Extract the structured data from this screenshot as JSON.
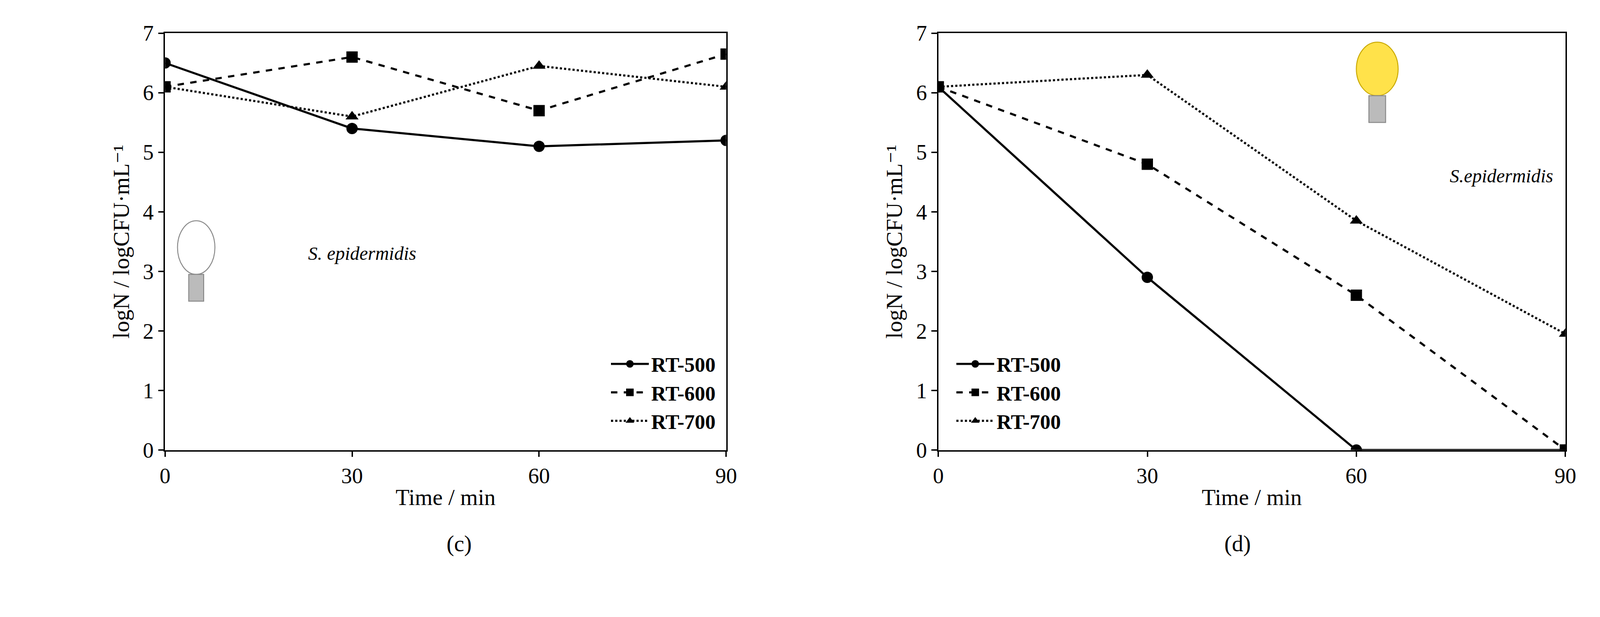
{
  "chart_data": [
    {
      "type": "line",
      "label": "(c)",
      "x": [
        0,
        30,
        60,
        90
      ],
      "x_label": "Time / min",
      "y_label": "logN / logCFU·mL⁻¹",
      "xlim": [
        0,
        90
      ],
      "xticks": [
        0,
        30,
        60,
        90
      ],
      "ylim": [
        0,
        7
      ],
      "yticks": [
        0,
        1,
        2,
        3,
        4,
        5,
        6,
        7
      ],
      "legend": "lower right",
      "annotations": [
        "S. epidermidis"
      ],
      "series": [
        {
          "name": "RT-500",
          "color": "#000000",
          "marker": "circle",
          "line_style": "solid",
          "values": [
            6.5,
            5.4,
            5.1,
            5.2
          ]
        },
        {
          "name": "RT-600",
          "color": "#000000",
          "marker": "square",
          "line_style": "dash",
          "values": [
            6.1,
            6.6,
            5.7,
            6.65
          ]
        },
        {
          "name": "RT-700",
          "color": "#000000",
          "marker": "triangle",
          "line_style": "dot",
          "values": [
            6.1,
            5.6,
            6.45,
            6.1
          ]
        }
      ]
    },
    {
      "type": "line",
      "label": "(d)",
      "x": [
        0,
        30,
        60,
        90
      ],
      "x_label": "Time / min",
      "y_label": "logN / logCFU·mL⁻¹",
      "xlim": [
        0,
        90
      ],
      "xticks": [
        0,
        30,
        60,
        90
      ],
      "ylim": [
        0,
        7
      ],
      "yticks": [
        0,
        1,
        2,
        3,
        4,
        5,
        6,
        7
      ],
      "legend": "lower left",
      "annotations": [
        "S.epidermidis"
      ],
      "series": [
        {
          "name": "RT-500",
          "color": "#000000",
          "marker": "circle",
          "line_style": "solid",
          "values": [
            6.1,
            2.9,
            0,
            0
          ]
        },
        {
          "name": "RT-600",
          "color": "#000000",
          "marker": "square",
          "line_style": "dash",
          "values": [
            6.1,
            4.8,
            2.6,
            0
          ]
        },
        {
          "name": "RT-700",
          "color": "#000000",
          "marker": "triangle",
          "line_style": "dot",
          "values": [
            6.1,
            6.3,
            3.85,
            1.95
          ]
        }
      ]
    }
  ]
}
